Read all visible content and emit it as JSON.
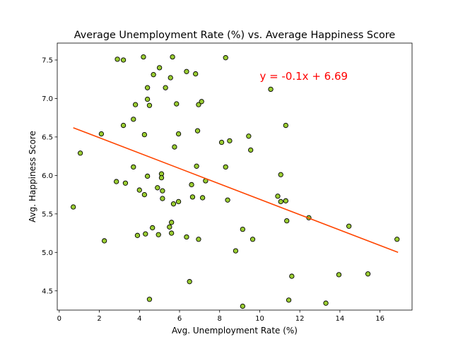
{
  "chart_data": {
    "type": "scatter",
    "title": "Average Unemployment Rate (%) vs. Average Happiness Score",
    "xlabel": "Avg. Unemployment Rate (%)",
    "ylabel": "Avg. Happiness Score",
    "xlim": [
      -0.1,
      17.6
    ],
    "ylim": [
      4.25,
      7.72
    ],
    "xticks": [
      0,
      2,
      4,
      6,
      8,
      10,
      12,
      14,
      16
    ],
    "yticks": [
      4.5,
      5.0,
      5.5,
      6.0,
      6.5,
      7.0,
      7.5
    ],
    "grid": false,
    "point_fill": "#9acd32",
    "point_edge": "#000000",
    "line_color": "#ff4500",
    "annotation": {
      "text": "y = -0.1x + 6.69",
      "color": "#ff0000",
      "x": 10.0,
      "y": 7.3
    },
    "regression": {
      "slope": -0.1,
      "intercept": 6.69,
      "x_range": [
        0.7,
        16.9
      ]
    },
    "points": [
      {
        "x": 0.7,
        "y": 5.59
      },
      {
        "x": 1.05,
        "y": 6.29
      },
      {
        "x": 2.1,
        "y": 6.54
      },
      {
        "x": 2.25,
        "y": 5.15
      },
      {
        "x": 2.85,
        "y": 5.92
      },
      {
        "x": 2.9,
        "y": 7.51
      },
      {
        "x": 3.2,
        "y": 6.65
      },
      {
        "x": 3.2,
        "y": 7.5
      },
      {
        "x": 3.3,
        "y": 5.9
      },
      {
        "x": 3.7,
        "y": 6.73
      },
      {
        "x": 3.7,
        "y": 6.11
      },
      {
        "x": 3.8,
        "y": 6.92
      },
      {
        "x": 3.9,
        "y": 5.22
      },
      {
        "x": 4.0,
        "y": 5.81
      },
      {
        "x": 4.2,
        "y": 7.54
      },
      {
        "x": 4.25,
        "y": 6.53
      },
      {
        "x": 4.25,
        "y": 5.75
      },
      {
        "x": 4.3,
        "y": 5.24
      },
      {
        "x": 4.4,
        "y": 7.14
      },
      {
        "x": 4.4,
        "y": 6.99
      },
      {
        "x": 4.4,
        "y": 5.99
      },
      {
        "x": 4.5,
        "y": 6.91
      },
      {
        "x": 4.5,
        "y": 4.39
      },
      {
        "x": 4.65,
        "y": 5.32
      },
      {
        "x": 4.7,
        "y": 7.31
      },
      {
        "x": 4.9,
        "y": 5.84
      },
      {
        "x": 4.95,
        "y": 5.23
      },
      {
        "x": 5.0,
        "y": 7.4
      },
      {
        "x": 5.1,
        "y": 6.02
      },
      {
        "x": 5.1,
        "y": 5.97
      },
      {
        "x": 5.15,
        "y": 5.8
      },
      {
        "x": 5.15,
        "y": 5.7
      },
      {
        "x": 5.3,
        "y": 7.14
      },
      {
        "x": 5.5,
        "y": 5.33
      },
      {
        "x": 5.55,
        "y": 7.27
      },
      {
        "x": 5.6,
        "y": 5.39
      },
      {
        "x": 5.6,
        "y": 5.25
      },
      {
        "x": 5.65,
        "y": 7.54
      },
      {
        "x": 5.7,
        "y": 5.63
      },
      {
        "x": 5.75,
        "y": 6.37
      },
      {
        "x": 5.85,
        "y": 6.93
      },
      {
        "x": 5.95,
        "y": 6.54
      },
      {
        "x": 5.95,
        "y": 5.66
      },
      {
        "x": 6.35,
        "y": 7.35
      },
      {
        "x": 6.35,
        "y": 5.2
      },
      {
        "x": 6.5,
        "y": 4.62
      },
      {
        "x": 6.6,
        "y": 5.88
      },
      {
        "x": 6.65,
        "y": 5.72
      },
      {
        "x": 6.8,
        "y": 7.32
      },
      {
        "x": 6.85,
        "y": 6.12
      },
      {
        "x": 6.9,
        "y": 6.58
      },
      {
        "x": 6.95,
        "y": 6.92
      },
      {
        "x": 6.95,
        "y": 5.17
      },
      {
        "x": 7.1,
        "y": 6.96
      },
      {
        "x": 7.15,
        "y": 5.71
      },
      {
        "x": 7.3,
        "y": 5.93
      },
      {
        "x": 8.1,
        "y": 6.43
      },
      {
        "x": 8.3,
        "y": 7.53
      },
      {
        "x": 8.3,
        "y": 6.11
      },
      {
        "x": 8.4,
        "y": 5.68
      },
      {
        "x": 8.5,
        "y": 6.45
      },
      {
        "x": 8.8,
        "y": 5.02
      },
      {
        "x": 9.15,
        "y": 5.3
      },
      {
        "x": 9.15,
        "y": 4.3
      },
      {
        "x": 9.45,
        "y": 6.51
      },
      {
        "x": 9.55,
        "y": 6.33
      },
      {
        "x": 9.65,
        "y": 5.17
      },
      {
        "x": 10.55,
        "y": 7.12
      },
      {
        "x": 10.9,
        "y": 5.73
      },
      {
        "x": 11.05,
        "y": 6.01
      },
      {
        "x": 11.05,
        "y": 5.66
      },
      {
        "x": 11.3,
        "y": 6.65
      },
      {
        "x": 11.3,
        "y": 5.67
      },
      {
        "x": 11.35,
        "y": 5.41
      },
      {
        "x": 11.45,
        "y": 4.38
      },
      {
        "x": 11.6,
        "y": 4.69
      },
      {
        "x": 12.45,
        "y": 5.45
      },
      {
        "x": 13.3,
        "y": 4.34
      },
      {
        "x": 13.95,
        "y": 4.71
      },
      {
        "x": 14.45,
        "y": 5.34
      },
      {
        "x": 15.4,
        "y": 4.72
      },
      {
        "x": 16.85,
        "y": 5.17
      }
    ]
  }
}
